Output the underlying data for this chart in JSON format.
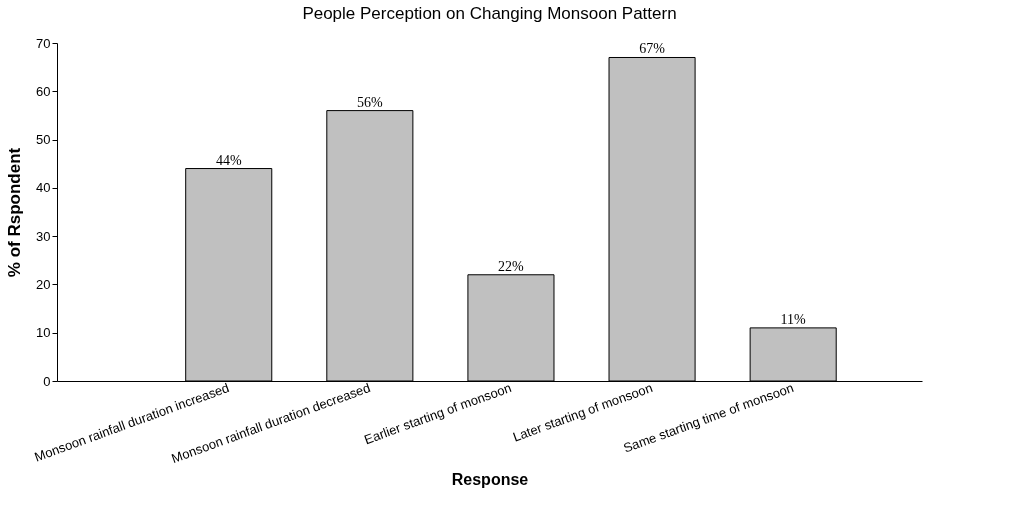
{
  "chart_data": {
    "type": "bar",
    "title": "People Perception on Changing Monsoon Pattern",
    "xlabel": "Response",
    "ylabel": "% of Rspondent",
    "categories": [
      "Monsoon rainfall duration increased",
      "Monsoon rainfall duration decreased",
      "Earlier starting of monsoon",
      "Later starting of monsoon",
      "Same starting time of monsoon"
    ],
    "values": [
      44,
      56,
      22,
      67,
      11
    ],
    "value_labels": [
      "44%",
      "56%",
      "22%",
      "67%",
      "11%"
    ],
    "color": "#c0c0c0",
    "ylim": [
      0,
      70
    ],
    "yticks": [
      0,
      10,
      20,
      30,
      40,
      50,
      60,
      70
    ],
    "grid": false
  }
}
